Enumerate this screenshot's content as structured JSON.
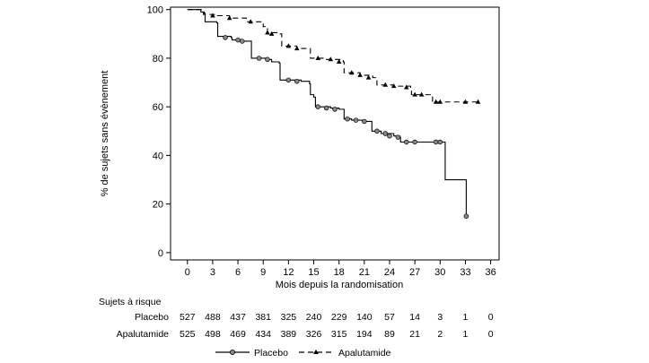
{
  "chart_data": {
    "type": "line",
    "xlabel": "Mois depuis la randomisation",
    "ylabel": "% de sujets sans évènement",
    "xlim": [
      -2,
      37
    ],
    "ylim": [
      -3,
      101
    ],
    "x_ticks": [
      0,
      3,
      6,
      9,
      12,
      15,
      18,
      21,
      24,
      27,
      30,
      33,
      36
    ],
    "y_ticks": [
      0,
      20,
      40,
      60,
      80,
      100
    ],
    "grid": false,
    "legend_position": "bottom-center",
    "series": [
      {
        "name": "Placebo",
        "style": "solid",
        "marker": "circle",
        "color": "#000000",
        "points": [
          [
            0,
            100
          ],
          [
            1.5,
            100
          ],
          [
            1.6,
            99
          ],
          [
            2,
            98.5
          ],
          [
            2.1,
            95
          ],
          [
            3.5,
            94.5
          ],
          [
            3.6,
            89
          ],
          [
            5.2,
            88.5
          ],
          [
            5.3,
            87.5
          ],
          [
            6.5,
            87
          ],
          [
            7.5,
            87
          ],
          [
            7.6,
            80
          ],
          [
            9.5,
            79.5
          ],
          [
            10,
            78.5
          ],
          [
            10.9,
            78
          ],
          [
            11,
            71
          ],
          [
            13.5,
            70.5
          ],
          [
            14.5,
            69.5
          ],
          [
            14.6,
            65
          ],
          [
            15,
            64
          ],
          [
            15.2,
            60
          ],
          [
            17,
            59.5
          ],
          [
            18,
            59
          ],
          [
            18.5,
            59
          ],
          [
            18.6,
            55
          ],
          [
            19.5,
            54.5
          ],
          [
            21,
            54
          ],
          [
            21.8,
            54
          ],
          [
            21.9,
            50
          ],
          [
            23,
            49
          ],
          [
            24.5,
            48
          ],
          [
            25.2,
            47.5
          ],
          [
            25.3,
            45.5
          ],
          [
            27,
            45.5
          ],
          [
            30.5,
            45.5
          ],
          [
            30.6,
            30
          ],
          [
            33,
            30
          ],
          [
            33.1,
            15
          ]
        ],
        "censor_markers": [
          [
            4.5,
            88.5
          ],
          [
            6,
            87.5
          ],
          [
            6.5,
            87
          ],
          [
            8.5,
            80
          ],
          [
            9.5,
            79.5
          ],
          [
            12,
            71
          ],
          [
            13,
            70.5
          ],
          [
            15.5,
            60
          ],
          [
            16.5,
            59.5
          ],
          [
            17.5,
            59
          ],
          [
            19,
            55
          ],
          [
            20,
            54.5
          ],
          [
            21,
            54
          ],
          [
            22.5,
            50
          ],
          [
            23.5,
            49
          ],
          [
            24,
            48
          ],
          [
            25,
            47.5
          ],
          [
            26,
            45.5
          ],
          [
            27,
            45.5
          ],
          [
            29.5,
            45.5
          ],
          [
            30,
            45.5
          ],
          [
            33.1,
            15
          ]
        ]
      },
      {
        "name": "Apalutamide",
        "style": "dashed",
        "marker": "triangle",
        "color": "#000000",
        "points": [
          [
            0,
            100
          ],
          [
            1.8,
            100
          ],
          [
            1.9,
            98
          ],
          [
            3.5,
            97.5
          ],
          [
            5,
            96.5
          ],
          [
            7,
            95
          ],
          [
            9,
            93
          ],
          [
            9.5,
            90.5
          ],
          [
            11,
            90
          ],
          [
            11.2,
            85
          ],
          [
            13,
            84
          ],
          [
            14.5,
            84
          ],
          [
            14.6,
            80
          ],
          [
            16.5,
            79.5
          ],
          [
            18.5,
            78.5
          ],
          [
            18.6,
            74
          ],
          [
            20.5,
            73
          ],
          [
            22,
            72
          ],
          [
            22.5,
            69
          ],
          [
            24.5,
            68.5
          ],
          [
            26.5,
            68
          ],
          [
            26.6,
            65
          ],
          [
            28.5,
            65
          ],
          [
            29.1,
            62
          ],
          [
            34.5,
            62
          ]
        ],
        "censor_markers": [
          [
            3,
            97.5
          ],
          [
            5,
            96.5
          ],
          [
            7.5,
            95
          ],
          [
            9.5,
            90.5
          ],
          [
            10,
            90
          ],
          [
            12,
            85
          ],
          [
            13,
            84
          ],
          [
            15.5,
            80
          ],
          [
            17,
            79.5
          ],
          [
            18,
            78.5
          ],
          [
            19.5,
            74
          ],
          [
            20.5,
            73
          ],
          [
            21.5,
            72
          ],
          [
            23.5,
            69
          ],
          [
            24.5,
            68.5
          ],
          [
            26,
            68
          ],
          [
            27,
            65
          ],
          [
            27.8,
            65
          ],
          [
            29.5,
            62
          ],
          [
            30,
            62
          ],
          [
            33,
            62
          ],
          [
            34.5,
            62
          ]
        ]
      }
    ],
    "risk_table": {
      "title": "Sujets à risque",
      "times": [
        0,
        3,
        6,
        9,
        12,
        15,
        18,
        21,
        24,
        27,
        30,
        33,
        36
      ],
      "rows": [
        {
          "label": "Placebo",
          "values": [
            "527",
            "488",
            "437",
            "381",
            "325",
            "240",
            "229",
            "140",
            "57",
            "14",
            "3",
            "1",
            "0"
          ]
        },
        {
          "label": "Apalutamide",
          "values": [
            "525",
            "498",
            "469",
            "434",
            "389",
            "326",
            "315",
            "194",
            "89",
            "21",
            "2",
            "1",
            "0"
          ]
        }
      ]
    }
  }
}
